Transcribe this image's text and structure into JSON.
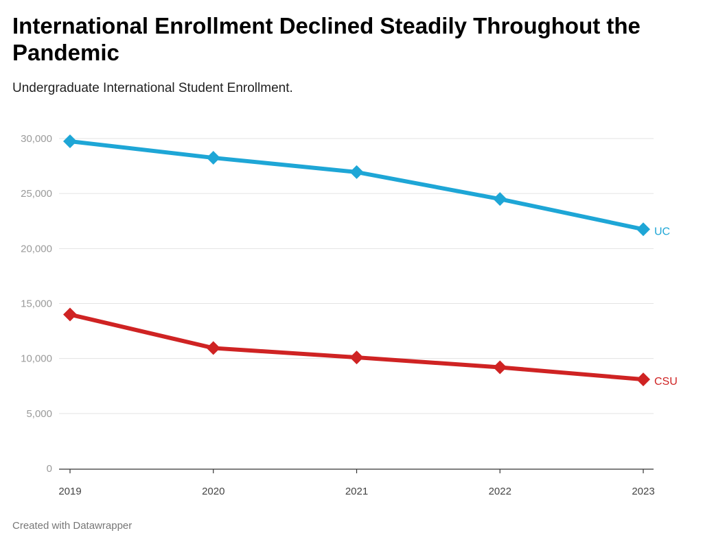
{
  "title": "International Enrollment Declined Steadily Throughout the Pandemic",
  "subtitle": "Undergraduate International Student Enrollment.",
  "footer": "Created with Datawrapper",
  "chart_data": {
    "type": "line",
    "title": "International Enrollment Declined Steadily Throughout the Pandemic",
    "subtitle": "Undergraduate International Student Enrollment.",
    "xlabel": "",
    "ylabel": "",
    "x": [
      "2019",
      "2020",
      "2021",
      "2022",
      "2023"
    ],
    "ylim": [
      0,
      30000
    ],
    "yticks": [
      0,
      5000,
      10000,
      15000,
      20000,
      25000,
      30000
    ],
    "ytick_labels": [
      "0",
      "5,000",
      "10,000",
      "15,000",
      "20,000",
      "25,000",
      "30,000"
    ],
    "grid": true,
    "legend": "direct labels at line ends",
    "series": [
      {
        "name": "UC",
        "color": "#1ea6d6",
        "values": [
          29750,
          28250,
          26950,
          24500,
          21750
        ]
      },
      {
        "name": "CSU",
        "color": "#cf2323",
        "values": [
          14000,
          10950,
          10100,
          9200,
          8100
        ]
      }
    ]
  }
}
